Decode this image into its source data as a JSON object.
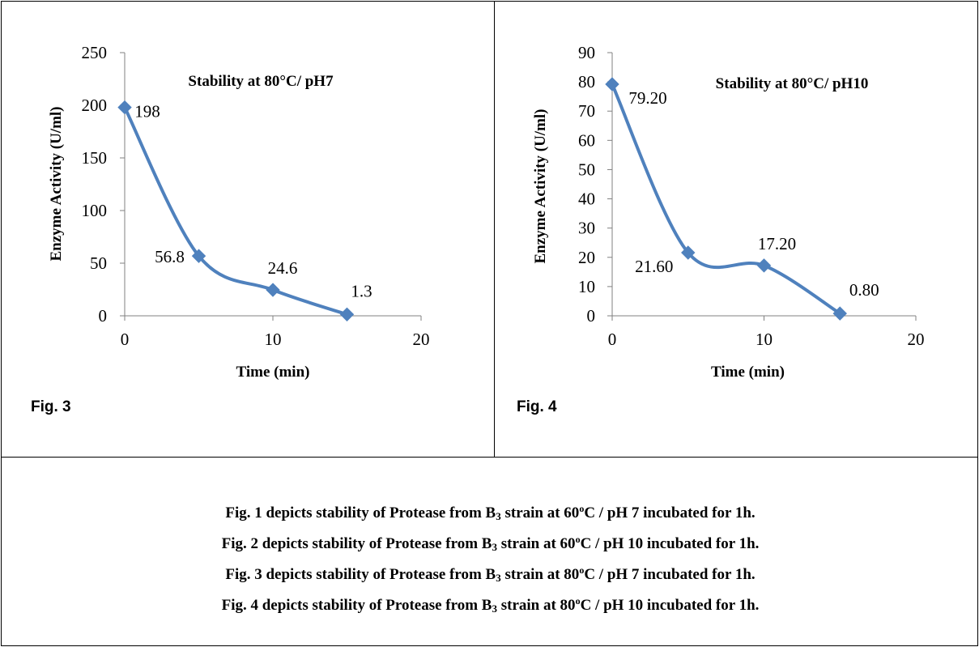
{
  "figures": [
    {
      "label": "Fig. 3",
      "chart_data": {
        "type": "line",
        "title": "Stability at 80°C/ pH7",
        "xlabel": "Time (min)",
        "ylabel": "Enzyme Activity (U/ml)",
        "xlim": [
          0,
          20
        ],
        "ylim": [
          0,
          250
        ],
        "xticks": [
          0,
          10,
          20
        ],
        "yticks": [
          0,
          50,
          100,
          150,
          200,
          250
        ],
        "x": [
          0,
          5,
          10,
          15
        ],
        "y": [
          198,
          56.8,
          24.6,
          1.3
        ],
        "point_labels": [
          "198",
          "56.8",
          "24.6",
          "1.3"
        ],
        "smooth": true,
        "grid": false,
        "series_color": "#4F81BD"
      }
    },
    {
      "label": "Fig. 4",
      "chart_data": {
        "type": "line",
        "title": "Stability at 80°C/ pH10",
        "xlabel": "Time (min)",
        "ylabel": "Enzyme Activity (U/ml)",
        "xlim": [
          0,
          20
        ],
        "ylim": [
          0,
          90
        ],
        "xticks": [
          0,
          10,
          20
        ],
        "yticks": [
          0,
          10,
          20,
          30,
          40,
          50,
          60,
          70,
          80,
          90
        ],
        "x": [
          0,
          5,
          10,
          15
        ],
        "y": [
          79.2,
          21.6,
          17.2,
          0.8
        ],
        "point_labels": [
          "79.20",
          "21.60",
          "17.20",
          "0.80"
        ],
        "smooth": true,
        "grid": false,
        "series_color": "#4F81BD"
      }
    }
  ],
  "captions": [
    {
      "pre": "Fig. 1 depicts stability of Protease from B",
      "sub": "3",
      "mid": " strain at 60",
      "sup": "o",
      "post": "C / pH 7 incubated for 1h."
    },
    {
      "pre": "Fig. 2 depicts stability of Protease from B",
      "sub": "3",
      "mid": " strain at 60",
      "sup": "o",
      "post": "C / pH 10 incubated for 1h."
    },
    {
      "pre": "Fig. 3 depicts stability of Protease from B",
      "sub": "3",
      "mid": " strain at 80",
      "sup": "o",
      "post": "C / pH 7 incubated for 1h."
    },
    {
      "pre": "Fig. 4 depicts stability of Protease from B",
      "sub": "3",
      "mid": " strain at 80",
      "sup": "o",
      "post": "C / pH 10 incubated for 1h."
    }
  ]
}
